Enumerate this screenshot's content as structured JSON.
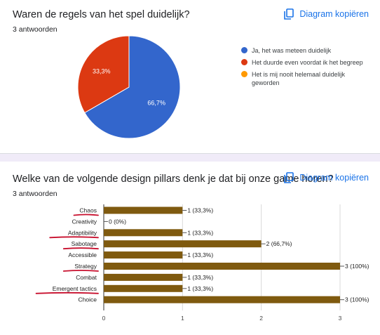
{
  "question1": {
    "title": "Waren de regels van het spel duidelijk?",
    "response_count": "3 antwoorden",
    "copy_button": "Diagram kopiëren",
    "legend": [
      {
        "label": "Ja, het was meteen duidelijk",
        "color": "#3366cc"
      },
      {
        "label": "Het duurde even voordat ik het begreep",
        "color": "#dc3912"
      },
      {
        "label": "Het is mij nooit helemaal duidelijk geworden",
        "color": "#ff9900"
      }
    ]
  },
  "question2": {
    "title": "Welke van de volgende design pillars denk je dat bij onze game horen?",
    "response_count": "3 antwoorden",
    "copy_button": "Diagram kopiëren"
  },
  "chart_data": [
    {
      "type": "pie",
      "categories": [
        "Ja, het was meteen duidelijk",
        "Het duurde even voordat ik het begreep",
        "Het is mij nooit helemaal duidelijk geworden"
      ],
      "values": [
        2,
        1,
        0
      ],
      "data_labels": [
        "66,7%",
        "33,3%",
        ""
      ],
      "colors": [
        "#3366cc",
        "#dc3912",
        "#ff9900"
      ],
      "legend": "right"
    },
    {
      "type": "bar",
      "orientation": "horizontal",
      "categories": [
        "Chaos",
        "Creativity",
        "Adaptibility",
        "Sabotage",
        "Accessible",
        "Strategy",
        "Combat",
        "Emergent tactics",
        "Choice"
      ],
      "values": [
        1,
        0,
        1,
        2,
        1,
        3,
        1,
        1,
        3
      ],
      "data_labels": [
        "1 (33,3%)",
        "0 (0%)",
        "1 (33,3%)",
        "2 (66,7%)",
        "1 (33,3%)",
        "3 (100%)",
        "1 (33,3%)",
        "1 (33,3%)",
        "3 (100%)"
      ],
      "xlim": [
        0,
        3
      ],
      "xticks": [
        "0",
        "1",
        "2",
        "3"
      ],
      "grid": true,
      "bar_color": "#7f5a0f",
      "annotated_categories": [
        "Chaos",
        "Adaptibility",
        "Sabotage",
        "Strategy",
        "Emergent tactics"
      ],
      "annotation_color": "#c8102e"
    }
  ]
}
